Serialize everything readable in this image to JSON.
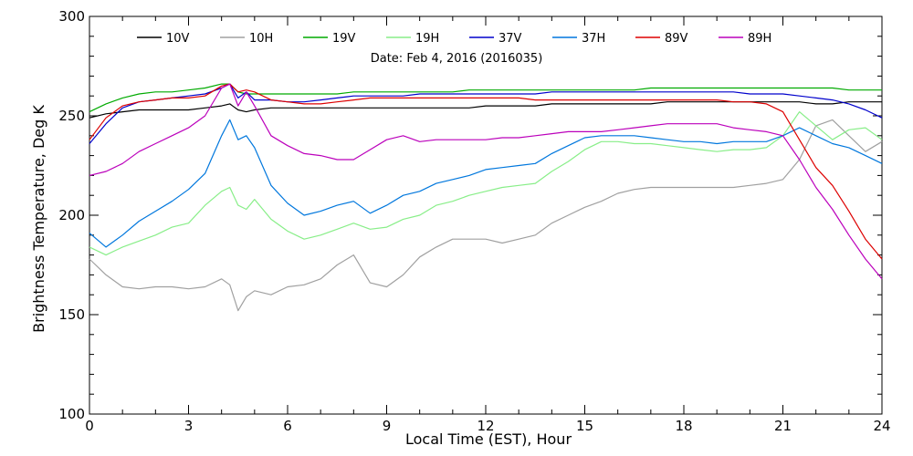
{
  "chart_data": {
    "type": "line",
    "title": "",
    "date_label": "Date: Feb  4, 2016 (2016035)",
    "xlabel": "Local Time (EST), Hour",
    "ylabel": "Brightness Temperature, Deg K",
    "xlim": [
      0,
      24
    ],
    "ylim": [
      100,
      300
    ],
    "xticks": [
      0,
      3,
      6,
      9,
      12,
      15,
      18,
      21,
      24
    ],
    "yticks": [
      100,
      150,
      200,
      250,
      300
    ],
    "grid": false,
    "legend_position": "top",
    "x": [
      0,
      0.5,
      1,
      1.5,
      2,
      2.5,
      3,
      3.5,
      4,
      4.25,
      4.5,
      4.75,
      5,
      5.5,
      6,
      6.5,
      7,
      7.5,
      8,
      8.5,
      9,
      9.5,
      10,
      10.5,
      11,
      11.5,
      12,
      12.5,
      13,
      13.5,
      14,
      14.5,
      15,
      15.5,
      16,
      16.5,
      17,
      17.5,
      18,
      18.5,
      19,
      19.5,
      20,
      20.5,
      21,
      21.5,
      22,
      22.5,
      23,
      23.5,
      24
    ],
    "series": [
      {
        "name": "10V",
        "color": "#000000",
        "values": [
          249,
          251,
          252,
          253,
          253,
          253,
          253,
          254,
          255,
          256,
          253,
          252,
          253,
          254,
          254,
          254,
          254,
          254,
          254,
          254,
          254,
          254,
          254,
          254,
          254,
          254,
          255,
          255,
          255,
          255,
          256,
          256,
          256,
          256,
          256,
          256,
          256,
          257,
          257,
          257,
          257,
          257,
          257,
          257,
          257,
          257,
          256,
          256,
          257,
          257,
          257
        ]
      },
      {
        "name": "10H",
        "color": "#a0a0a0",
        "values": [
          178,
          170,
          164,
          163,
          164,
          164,
          163,
          164,
          168,
          165,
          152,
          159,
          162,
          160,
          164,
          165,
          168,
          175,
          180,
          166,
          164,
          170,
          179,
          184,
          188,
          188,
          188,
          186,
          188,
          190,
          196,
          200,
          204,
          207,
          211,
          213,
          214,
          214,
          214,
          214,
          214,
          214,
          215,
          216,
          218,
          228,
          245,
          248,
          240,
          232,
          237
        ]
      },
      {
        "name": "19V",
        "color": "#00aa00",
        "values": [
          252,
          256,
          259,
          261,
          262,
          262,
          263,
          264,
          266,
          266,
          262,
          261,
          261,
          261,
          261,
          261,
          261,
          261,
          262,
          262,
          262,
          262,
          262,
          262,
          262,
          263,
          263,
          263,
          263,
          263,
          263,
          263,
          263,
          263,
          263,
          263,
          264,
          264,
          264,
          264,
          264,
          264,
          264,
          264,
          264,
          264,
          264,
          264,
          263,
          263,
          263
        ]
      },
      {
        "name": "19H",
        "color": "#88ee88",
        "values": [
          184,
          180,
          184,
          187,
          190,
          194,
          196,
          205,
          212,
          214,
          205,
          203,
          208,
          198,
          192,
          188,
          190,
          193,
          196,
          193,
          194,
          198,
          200,
          205,
          207,
          210,
          212,
          214,
          215,
          216,
          222,
          227,
          233,
          237,
          237,
          236,
          236,
          235,
          234,
          233,
          232,
          233,
          233,
          234,
          240,
          252,
          245,
          238,
          243,
          244,
          238
        ]
      },
      {
        "name": "37V",
        "color": "#0000cc",
        "values": [
          236,
          246,
          254,
          257,
          258,
          259,
          260,
          261,
          264,
          266,
          259,
          262,
          258,
          258,
          257,
          257,
          258,
          259,
          260,
          260,
          260,
          260,
          261,
          261,
          261,
          261,
          261,
          261,
          261,
          261,
          262,
          262,
          262,
          262,
          262,
          262,
          262,
          262,
          262,
          262,
          262,
          262,
          261,
          261,
          261,
          260,
          259,
          258,
          256,
          253,
          249
        ]
      },
      {
        "name": "37H",
        "color": "#0077dd",
        "values": [
          191,
          184,
          190,
          197,
          202,
          207,
          213,
          221,
          240,
          248,
          238,
          240,
          234,
          215,
          206,
          200,
          202,
          205,
          207,
          201,
          205,
          210,
          212,
          216,
          218,
          220,
          223,
          224,
          225,
          226,
          231,
          235,
          239,
          240,
          240,
          240,
          239,
          238,
          237,
          237,
          236,
          237,
          237,
          237,
          240,
          244,
          240,
          236,
          234,
          230,
          226
        ]
      },
      {
        "name": "89V",
        "color": "#dd0000",
        "values": [
          238,
          249,
          255,
          257,
          258,
          259,
          259,
          260,
          265,
          266,
          262,
          263,
          262,
          258,
          257,
          256,
          256,
          257,
          258,
          259,
          259,
          259,
          259,
          259,
          259,
          259,
          259,
          259,
          259,
          258,
          258,
          258,
          258,
          258,
          258,
          258,
          258,
          258,
          258,
          258,
          258,
          257,
          257,
          256,
          252,
          238,
          224,
          215,
          202,
          188,
          178
        ]
      },
      {
        "name": "89H",
        "color": "#bb00bb",
        "values": [
          220,
          222,
          226,
          232,
          236,
          240,
          244,
          250,
          264,
          266,
          255,
          262,
          255,
          240,
          235,
          231,
          230,
          228,
          228,
          233,
          238,
          240,
          237,
          238,
          238,
          238,
          238,
          239,
          239,
          240,
          241,
          242,
          242,
          242,
          243,
          244,
          245,
          246,
          246,
          246,
          246,
          244,
          243,
          242,
          240,
          228,
          214,
          203,
          190,
          178,
          168
        ]
      }
    ]
  }
}
